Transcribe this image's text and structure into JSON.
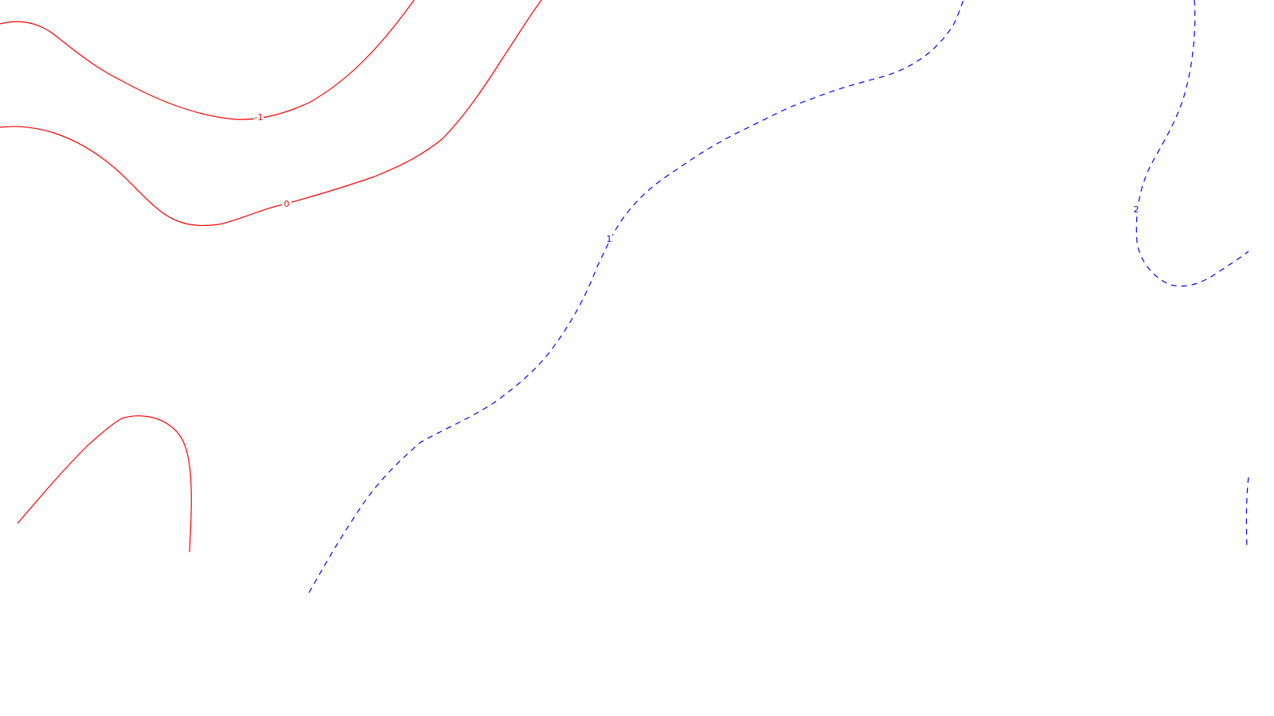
{
  "chart_data": {
    "type": "contour",
    "title": "",
    "xlabel": "",
    "ylabel": "",
    "grid": false,
    "legend": "none",
    "colors": {
      "negative_and_zero": "#ff0000",
      "positive": "#0000ff",
      "background": "#ffffff"
    },
    "contours": [
      {
        "level": "-1",
        "color": "#ff0000",
        "style": "solid"
      },
      {
        "level": "0",
        "color": "#ff0000",
        "style": "solid"
      },
      {
        "level": "",
        "color": "#ff0000",
        "style": "solid"
      },
      {
        "level": "1",
        "color": "#0000ff",
        "style": "dashed"
      },
      {
        "level": "2",
        "color": "#0000ff",
        "style": "dashed"
      },
      {
        "level": "",
        "color": "#0000ff",
        "style": "dashed"
      }
    ]
  }
}
